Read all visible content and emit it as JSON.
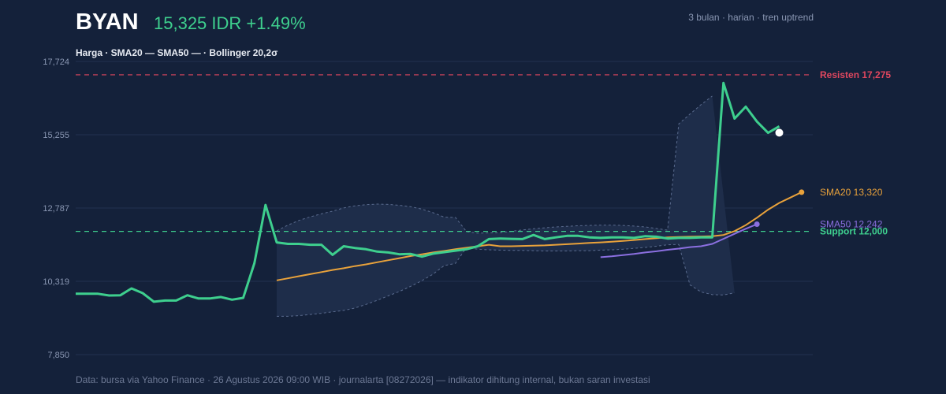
{
  "header": {
    "ticker": "BYAN",
    "price_text": "15,325 IDR +1.49%",
    "subtitle": "3 bulan · harian · tren uptrend"
  },
  "legend": {
    "text": "Harga · SMA20 — SMA50 — · Bollinger 20,2σ"
  },
  "footer": {
    "text": "Data: bursa via Yahoo Finance · 26 Agustus 2026 09:00 WIB · journalarta [08272026] — indikator dihitung internal, bukan saran investasi"
  },
  "colors": {
    "background": "#14213a",
    "price": "#3ecf8e",
    "sma20": "#e9a23b",
    "sma50": "#8b6fe0",
    "resistance": "#e0475f",
    "support": "#3ecf8e",
    "band_fill": "#1e2d4a",
    "band_edge": "#5a6b8e",
    "grid": "#223150",
    "axis_text": "#8a97b3"
  },
  "chart_data": {
    "type": "line",
    "y_ticks": [
      "17,724",
      "15,255",
      "12,787",
      "10,319",
      "7,850"
    ],
    "ylim": [
      7850,
      17724
    ],
    "x_count": 67,
    "series": [
      {
        "name": "Harga",
        "start_index": 0,
        "values": [
          9900,
          9900,
          9900,
          9840,
          9850,
          10080,
          9920,
          9630,
          9670,
          9670,
          9850,
          9740,
          9740,
          9790,
          9700,
          9760,
          10930,
          12890,
          11630,
          11580,
          11580,
          11550,
          11550,
          11210,
          11500,
          11440,
          11400,
          11320,
          11290,
          11230,
          11240,
          11150,
          11250,
          11300,
          11350,
          11400,
          11500,
          11740,
          11760,
          11750,
          11740,
          11880,
          11740,
          11800,
          11850,
          11850,
          11800,
          11780,
          11800,
          11800,
          11780,
          11840,
          11820,
          11760,
          11780,
          11780,
          11800,
          11800,
          17000,
          15800,
          16200,
          15700,
          15320,
          15540
        ]
      },
      {
        "name": "SMA20",
        "start_index": 18,
        "values": [
          10350,
          10420,
          10490,
          10560,
          10630,
          10700,
          10760,
          10830,
          10890,
          10960,
          11030,
          11100,
          11170,
          11230,
          11290,
          11340,
          11400,
          11450,
          11500,
          11550,
          11500,
          11500,
          11510,
          11520,
          11530,
          11550,
          11570,
          11590,
          11610,
          11630,
          11650,
          11680,
          11710,
          11740,
          11770,
          11800,
          11810,
          11820,
          11830,
          11840,
          11880,
          12010,
          12210,
          12460,
          12730,
          12960,
          13140,
          13320
        ]
      },
      {
        "name": "SMA50",
        "start_index": 47,
        "values": [
          11130,
          11160,
          11200,
          11240,
          11290,
          11330,
          11380,
          11420,
          11470,
          11500,
          11580,
          11750,
          11920,
          12090,
          12242
        ]
      },
      {
        "name": "Bollinger atas",
        "start_index": 18,
        "values": [
          12020,
          12210,
          12370,
          12490,
          12590,
          12680,
          12790,
          12860,
          12900,
          12920,
          12910,
          12880,
          12830,
          12750,
          12630,
          12480,
          12470,
          11990,
          11940,
          11950,
          11960,
          12000,
          12050,
          12090,
          12120,
          12150,
          12170,
          12190,
          12200,
          12210,
          12210,
          12200,
          12180,
          12150,
          12100,
          12040,
          15620,
          15950,
          16270,
          16560
        ]
      },
      {
        "name": "Bollinger bawah",
        "start_index": 18,
        "values": [
          9140,
          9140,
          9160,
          9200,
          9240,
          9290,
          9340,
          9420,
          9540,
          9680,
          9830,
          9980,
          10150,
          10340,
          10560,
          10850,
          10920,
          11460,
          11400,
          11380,
          11370,
          11360,
          11360,
          11350,
          11340,
          11340,
          11340,
          11350,
          11350,
          11370,
          11380,
          11400,
          11430,
          11460,
          11500,
          11550,
          11560,
          10200,
          9960,
          9870,
          9860,
          9930
        ]
      }
    ],
    "levels": [
      {
        "name": "Resisten",
        "value": 17275,
        "label": "Resisten 17,275"
      },
      {
        "name": "Support",
        "value": 12000,
        "label": "Support 12,000"
      }
    ],
    "end_labels": {
      "sma20": "SMA20 13,320",
      "sma50": "SMA50 12,242"
    },
    "last_price": 15325
  }
}
